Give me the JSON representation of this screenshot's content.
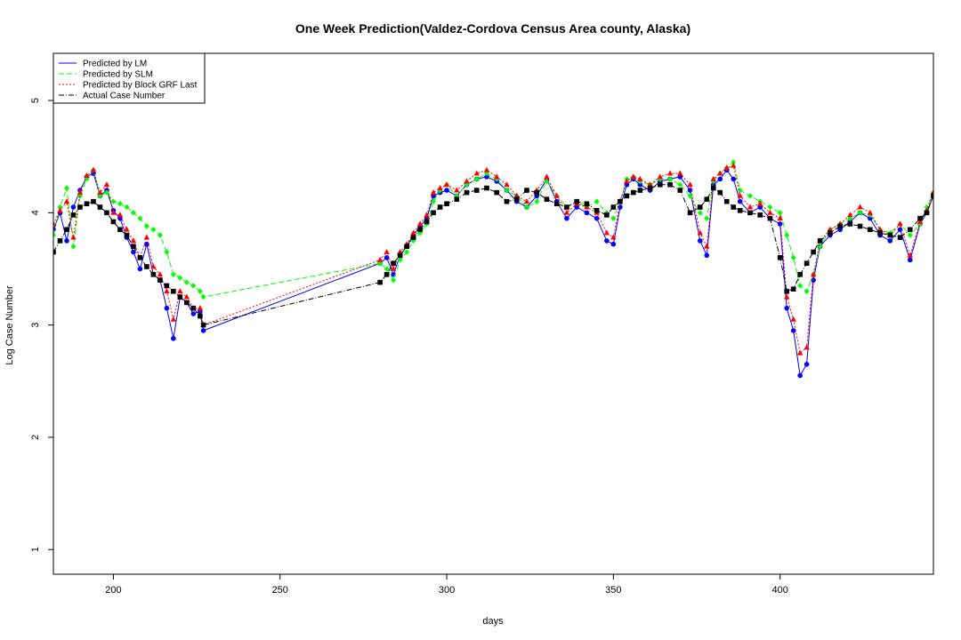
{
  "chart_data": {
    "type": "line",
    "title": "One Week Prediction(Valdez-Cordova Census Area county, Alaska)",
    "xlabel": "days",
    "ylabel": "Log Case Number",
    "xlim": [
      182,
      446
    ],
    "ylim": [
      0.78,
      5.42
    ],
    "xticks": [
      200,
      250,
      300,
      350,
      400
    ],
    "yticks": [
      1,
      2,
      3,
      4,
      5
    ],
    "grid": false,
    "legend_position": "top-left",
    "x_segments": [
      [
        182,
        227
      ],
      [
        280,
        446
      ]
    ],
    "series": [
      {
        "name": "Predicted by LM",
        "color": "#0000ff",
        "line_style": "solid",
        "marker": "circle",
        "x": [
          182,
          184,
          186,
          188,
          190,
          192,
          194,
          196,
          198,
          200,
          202,
          204,
          206,
          208,
          210,
          212,
          214,
          216,
          218,
          220,
          222,
          224,
          226,
          227,
          280,
          282,
          284,
          286,
          288,
          290,
          292,
          294,
          296,
          298,
          300,
          303,
          306,
          309,
          312,
          315,
          318,
          321,
          324,
          327,
          330,
          333,
          336,
          339,
          342,
          345,
          348,
          350,
          352,
          354,
          356,
          358,
          361,
          364,
          367,
          370,
          373,
          376,
          378,
          380,
          382,
          384,
          386,
          388,
          391,
          394,
          397,
          400,
          402,
          404,
          406,
          408,
          410,
          412,
          415,
          418,
          421,
          424,
          427,
          430,
          433,
          436,
          439,
          442,
          444,
          446
        ],
        "y": [
          3.85,
          4.0,
          3.75,
          4.05,
          4.2,
          4.32,
          4.35,
          4.15,
          4.2,
          4.02,
          3.95,
          3.78,
          3.65,
          3.5,
          3.72,
          3.45,
          3.4,
          3.15,
          2.88,
          3.25,
          3.2,
          3.1,
          3.12,
          2.95,
          3.55,
          3.6,
          3.45,
          3.62,
          3.7,
          3.8,
          3.88,
          3.95,
          4.15,
          4.18,
          4.2,
          4.15,
          4.25,
          4.3,
          4.32,
          4.28,
          4.2,
          4.1,
          4.05,
          4.15,
          4.3,
          4.1,
          3.95,
          4.05,
          4.0,
          3.95,
          3.75,
          3.72,
          4.05,
          4.25,
          4.3,
          4.25,
          4.2,
          4.28,
          4.3,
          4.32,
          4.2,
          3.75,
          3.62,
          4.25,
          4.3,
          4.38,
          4.3,
          4.1,
          4.0,
          4.05,
          3.95,
          3.9,
          3.15,
          2.95,
          2.55,
          2.65,
          3.4,
          3.7,
          3.8,
          3.85,
          3.92,
          4.0,
          3.95,
          3.8,
          3.75,
          3.85,
          3.58,
          3.9,
          4.0,
          4.15
        ]
      },
      {
        "name": "Predicted by SLM",
        "color": "#00ff00",
        "line_style": "dashed",
        "marker": "diamond",
        "x": [
          182,
          184,
          186,
          188,
          190,
          192,
          194,
          196,
          198,
          200,
          202,
          204,
          206,
          208,
          210,
          212,
          214,
          216,
          218,
          220,
          222,
          224,
          226,
          227,
          280,
          282,
          284,
          286,
          288,
          290,
          292,
          294,
          296,
          298,
          300,
          303,
          306,
          309,
          312,
          315,
          318,
          321,
          324,
          327,
          330,
          333,
          336,
          339,
          342,
          345,
          348,
          350,
          352,
          354,
          356,
          358,
          361,
          364,
          367,
          370,
          373,
          376,
          378,
          380,
          382,
          384,
          386,
          388,
          391,
          394,
          397,
          400,
          402,
          404,
          406,
          408,
          410,
          412,
          415,
          418,
          421,
          424,
          427,
          430,
          433,
          436,
          439,
          442,
          444,
          446
        ],
        "y": [
          3.8,
          4.05,
          4.22,
          3.7,
          4.15,
          4.3,
          4.38,
          4.15,
          4.18,
          4.1,
          4.08,
          4.05,
          4.0,
          3.95,
          3.88,
          3.85,
          3.8,
          3.65,
          3.45,
          3.42,
          3.38,
          3.35,
          3.3,
          3.25,
          3.55,
          3.5,
          3.4,
          3.58,
          3.65,
          3.75,
          3.82,
          3.9,
          4.1,
          4.2,
          4.25,
          4.15,
          4.25,
          4.3,
          4.35,
          4.3,
          4.2,
          4.15,
          4.05,
          4.1,
          4.28,
          4.15,
          4.05,
          4.1,
          4.05,
          4.1,
          4.0,
          3.95,
          4.1,
          4.3,
          4.32,
          4.28,
          4.25,
          4.3,
          4.3,
          4.25,
          4.15,
          4.0,
          3.95,
          4.28,
          4.35,
          4.4,
          4.45,
          4.2,
          4.15,
          4.1,
          4.05,
          4.0,
          3.8,
          3.6,
          3.35,
          3.3,
          3.45,
          3.7,
          3.85,
          3.9,
          3.95,
          4.0,
          3.98,
          3.85,
          3.82,
          3.9,
          3.8,
          3.9,
          4.05,
          4.18
        ]
      },
      {
        "name": "Predicted by Block GRF Last",
        "color": "#ff0000",
        "line_style": "dotted",
        "marker": "triangle",
        "x": [
          182,
          184,
          186,
          188,
          190,
          192,
          194,
          196,
          198,
          200,
          202,
          204,
          206,
          208,
          210,
          212,
          214,
          216,
          218,
          220,
          222,
          224,
          226,
          227,
          280,
          282,
          284,
          286,
          288,
          290,
          292,
          294,
          296,
          298,
          300,
          303,
          306,
          309,
          312,
          315,
          318,
          321,
          324,
          327,
          330,
          333,
          336,
          339,
          342,
          345,
          348,
          350,
          352,
          354,
          356,
          358,
          361,
          364,
          367,
          370,
          373,
          376,
          378,
          380,
          382,
          384,
          386,
          388,
          391,
          394,
          397,
          400,
          402,
          404,
          406,
          408,
          410,
          412,
          415,
          418,
          421,
          424,
          427,
          430,
          433,
          436,
          439,
          442,
          444,
          446
        ],
        "y": [
          3.9,
          4.02,
          4.1,
          3.78,
          4.18,
          4.33,
          4.38,
          4.18,
          4.25,
          4.0,
          3.98,
          3.85,
          3.75,
          3.6,
          3.78,
          3.52,
          3.45,
          3.3,
          3.05,
          3.3,
          3.25,
          3.15,
          3.15,
          3.0,
          3.58,
          3.65,
          3.5,
          3.65,
          3.72,
          3.82,
          3.9,
          3.98,
          4.18,
          4.22,
          4.25,
          4.2,
          4.28,
          4.35,
          4.38,
          4.32,
          4.25,
          4.15,
          4.1,
          4.2,
          4.32,
          4.15,
          4.0,
          4.08,
          4.05,
          4.0,
          3.82,
          3.78,
          4.1,
          4.28,
          4.32,
          4.3,
          4.25,
          4.32,
          4.35,
          4.35,
          4.25,
          3.82,
          3.7,
          4.3,
          4.35,
          4.4,
          4.42,
          4.15,
          4.05,
          4.08,
          4.0,
          3.95,
          3.25,
          3.05,
          2.75,
          2.8,
          3.45,
          3.75,
          3.85,
          3.9,
          3.98,
          4.05,
          4.0,
          3.85,
          3.8,
          3.9,
          3.62,
          3.92,
          4.02,
          4.18
        ]
      },
      {
        "name": "Actual Case Number",
        "color": "#000000",
        "line_style": "dashdot",
        "marker": "square",
        "x": [
          182,
          184,
          186,
          188,
          190,
          192,
          194,
          196,
          198,
          200,
          202,
          204,
          206,
          208,
          210,
          212,
          214,
          216,
          218,
          220,
          222,
          224,
          226,
          227,
          280,
          282,
          284,
          286,
          288,
          290,
          292,
          294,
          296,
          298,
          300,
          303,
          306,
          309,
          312,
          315,
          318,
          321,
          324,
          327,
          330,
          333,
          336,
          339,
          342,
          345,
          348,
          350,
          352,
          354,
          356,
          358,
          361,
          364,
          367,
          370,
          373,
          376,
          378,
          380,
          382,
          384,
          386,
          388,
          391,
          394,
          397,
          400,
          402,
          404,
          406,
          408,
          410,
          412,
          415,
          418,
          421,
          424,
          427,
          430,
          433,
          436,
          439,
          442,
          444,
          446
        ],
        "y": [
          3.65,
          3.75,
          3.85,
          3.98,
          4.05,
          4.08,
          4.1,
          4.05,
          4.0,
          3.92,
          3.85,
          3.8,
          3.7,
          3.6,
          3.52,
          3.45,
          3.4,
          3.35,
          3.3,
          3.25,
          3.2,
          3.15,
          3.08,
          3.0,
          3.38,
          3.45,
          3.55,
          3.62,
          3.7,
          3.78,
          3.85,
          3.92,
          4.0,
          4.05,
          4.08,
          4.12,
          4.18,
          4.2,
          4.22,
          4.18,
          4.1,
          4.12,
          4.2,
          4.18,
          4.12,
          4.08,
          4.05,
          4.1,
          4.08,
          4.02,
          3.98,
          4.05,
          4.1,
          4.15,
          4.18,
          4.2,
          4.22,
          4.25,
          4.25,
          4.2,
          4.0,
          4.05,
          4.12,
          4.22,
          4.18,
          4.1,
          4.05,
          4.02,
          4.0,
          3.98,
          3.95,
          3.6,
          3.3,
          3.32,
          3.45,
          3.55,
          3.65,
          3.75,
          3.82,
          3.88,
          3.9,
          3.88,
          3.85,
          3.82,
          3.8,
          3.78,
          3.85,
          3.95,
          4.0,
          4.15
        ]
      }
    ]
  }
}
